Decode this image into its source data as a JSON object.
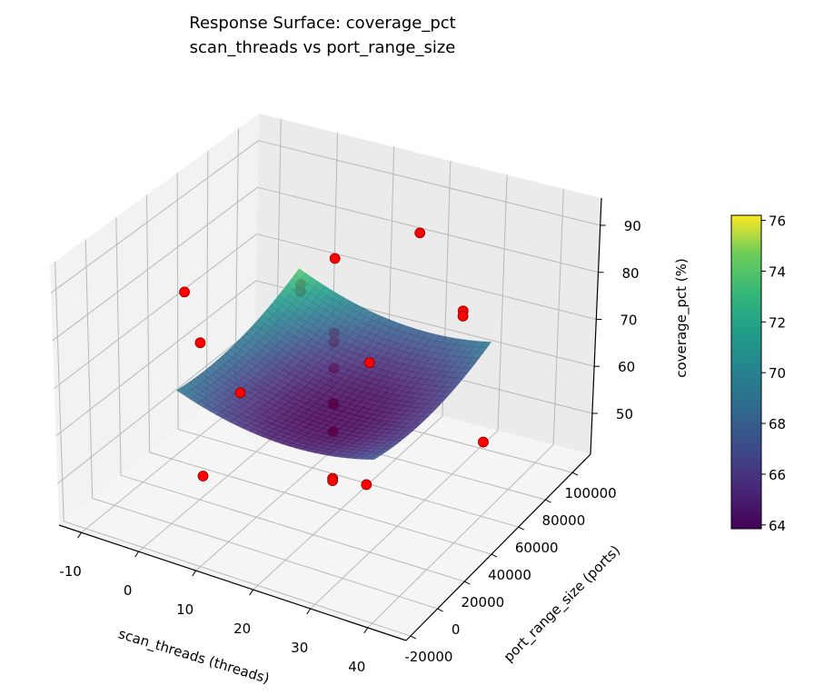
{
  "chart_data": {
    "type": "surface3d",
    "title": [
      "Response Surface: coverage_pct",
      "scan_threads vs port_range_size"
    ],
    "xlabel": "scan_threads (threads)",
    "ylabel": "port_range_size (ports)",
    "zlabel": "coverage_pct (%)",
    "xlim": [
      -13.9,
      46.7
    ],
    "ylim": [
      -23300,
      113400
    ],
    "zlim": [
      41.3,
      95.8
    ],
    "xticks": [
      -10,
      0,
      10,
      20,
      30,
      40
    ],
    "yticks": [
      -20000,
      0,
      20000,
      40000,
      60000,
      80000,
      100000
    ],
    "zticks": [
      50,
      60,
      70,
      80,
      90
    ],
    "grid": true,
    "surface": {
      "x_range": [
        1,
        35
      ],
      "y_range": [
        1000,
        85000
      ],
      "model": "z = base + a*(u-u0)^2 + b*(v-v0)^2 + c*(u-u0)*(v-v0), u,v normalized to surface range",
      "base": 63.8,
      "a": 14,
      "u0": 0.6,
      "b": 10,
      "v0": 0.35,
      "c": -3,
      "colormap": "viridis",
      "alpha": 0.85
    },
    "colorbar": {
      "range": [
        63.85,
        76.2
      ],
      "ticks": [
        64,
        66,
        68,
        70,
        72,
        74,
        76
      ]
    },
    "points_color": "#ff0000",
    "points": [
      {
        "x": -7.5,
        "y": 40000,
        "z": 77.5,
        "behind": false
      },
      {
        "x": -4.8,
        "y": 40000,
        "z": 67.7,
        "behind": false
      },
      {
        "x": 2.2,
        "y": 40000,
        "z": 59.6,
        "behind": false
      },
      {
        "x": 1.2,
        "y": 17700,
        "z": 47.3,
        "behind": false
      },
      {
        "x": 18.5,
        "y": 40000,
        "z": 93.6,
        "behind": false
      },
      {
        "x": 18.5,
        "y": 40000,
        "z": 77.9,
        "behind": true
      },
      {
        "x": 18.5,
        "y": 40000,
        "z": 76.0,
        "behind": true
      },
      {
        "x": 18.5,
        "y": 40000,
        "z": 70.5,
        "behind": true
      },
      {
        "x": 18.5,
        "y": 40000,
        "z": 63.0,
        "behind": true
      },
      {
        "x": 18.5,
        "y": 40000,
        "z": 57.1,
        "behind": true
      },
      {
        "x": 18.5,
        "y": 40000,
        "z": 47.3,
        "behind": false
      },
      {
        "x": 18.5,
        "y": 40000,
        "z": 46.8,
        "behind": false
      },
      {
        "x": 24.7,
        "y": 40000,
        "z": 73.8,
        "behind": false
      },
      {
        "x": 29.8,
        "y": 17700,
        "z": 56.0,
        "behind": false
      },
      {
        "x": 23.1,
        "y": 80600,
        "z": 90.0,
        "behind": false
      },
      {
        "x": 31.0,
        "y": 80600,
        "z": 76.0,
        "behind": false
      },
      {
        "x": 31.0,
        "y": 80600,
        "z": 74.9,
        "behind": false
      },
      {
        "x": 39.7,
        "y": 61500,
        "z": 56.4,
        "behind": false
      },
      {
        "x": 2.4,
        "y": 80600,
        "z": 72.4,
        "behind": true
      },
      {
        "x": 2.4,
        "y": 80600,
        "z": 70.9,
        "behind": true
      }
    ]
  }
}
